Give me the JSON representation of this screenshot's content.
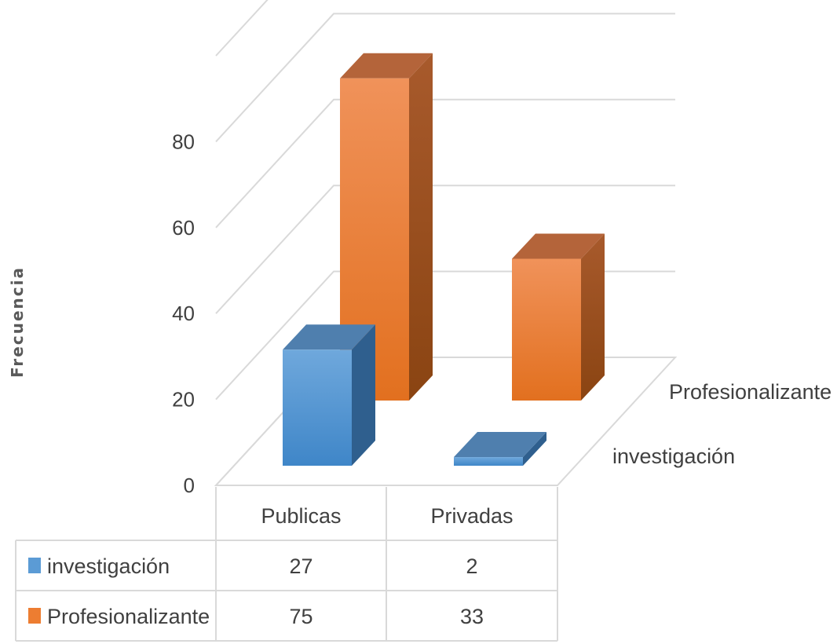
{
  "chart_data": {
    "type": "bar",
    "title": "",
    "ylabel": "Frecuencia",
    "xlabel": "",
    "categories": [
      "Publicas",
      "Privadas"
    ],
    "series": [
      {
        "name": "investigación",
        "values": [
          27,
          2
        ],
        "color": "#5b9bd5"
      },
      {
        "name": "Profesionalizante",
        "values": [
          75,
          33
        ],
        "color": "#ed7d31"
      }
    ],
    "yticks": [
      0,
      20,
      40,
      60,
      80
    ],
    "ylim": [
      0,
      100
    ],
    "grid": true,
    "legend": "data-table",
    "style": "3d-column"
  }
}
